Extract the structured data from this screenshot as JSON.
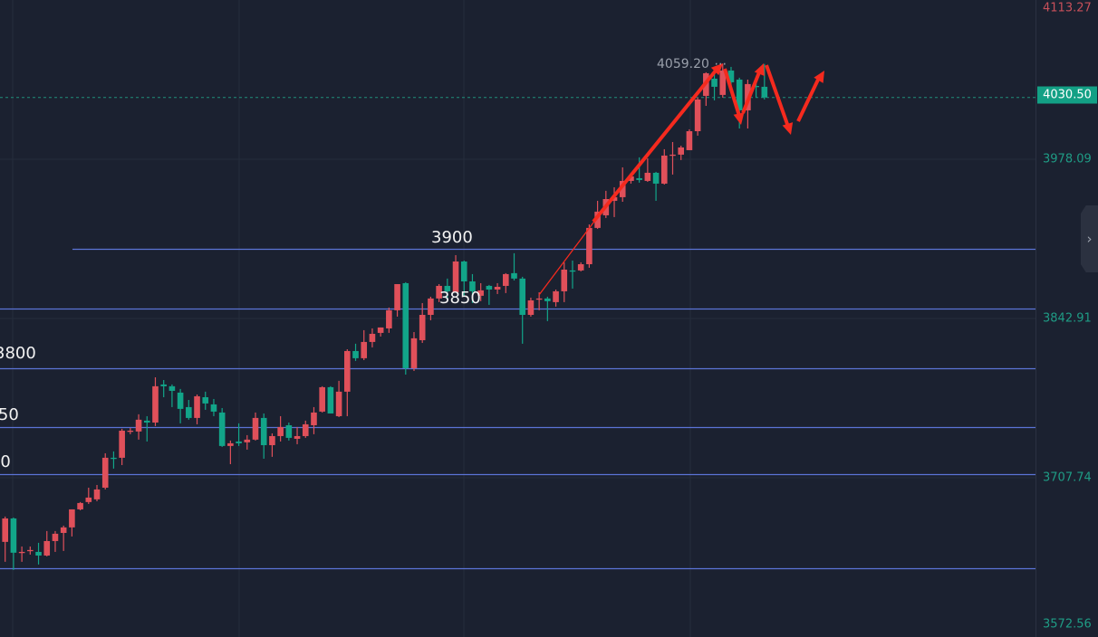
{
  "chart_data": {
    "type": "candlestick",
    "ylim": [
      3572.56,
      4113.27
    ],
    "grid": true,
    "up_color": "#e0505a",
    "down_color": "#12a589",
    "level_line_color": "#5b74d6",
    "axis_ticks": [
      "4113.27",
      "3978.09",
      "3842.91",
      "3707.74",
      "3572.56"
    ],
    "last_price": "4030.50",
    "high_label": "4059.20",
    "levels": [
      {
        "price": 3902,
        "label": "3900"
      },
      {
        "price": 3851,
        "label": "3850"
      },
      {
        "price": 3801,
        "label": "3800"
      },
      {
        "price": 3751,
        "label": "3750"
      },
      {
        "price": 3711,
        "label": "3700"
      },
      {
        "price": 3631,
        "label": ""
      }
    ],
    "candles": [
      [
        3653.3,
        3674.8,
        3636.4,
        3673.2
      ],
      [
        3673.2,
        3674.0,
        3629.5,
        3644.1
      ],
      [
        3644.1,
        3649.4,
        3636.4,
        3644.8
      ],
      [
        3645.6,
        3649.4,
        3642.5,
        3646.4
      ],
      [
        3644.8,
        3652.5,
        3634.1,
        3641.7
      ],
      [
        3641.7,
        3662.5,
        3641.0,
        3654.0
      ],
      [
        3654.0,
        3662.5,
        3644.8,
        3660.2
      ],
      [
        3660.9,
        3667.1,
        3645.6,
        3665.6
      ],
      [
        3665.6,
        3680.9,
        3657.9,
        3680.9
      ],
      [
        3680.9,
        3687.1,
        3680.1,
        3686.3
      ],
      [
        3687.1,
        3699.3,
        3685.5,
        3690.9
      ],
      [
        3689.4,
        3701.6,
        3687.8,
        3697.8
      ],
      [
        3699.3,
        3728.5,
        3697.8,
        3724.7
      ],
      [
        3724.7,
        3730.1,
        3715.5,
        3723.9
      ],
      [
        3724.7,
        3749.3,
        3718.5,
        3747.7
      ],
      [
        3747.0,
        3750.0,
        3744.7,
        3747.7
      ],
      [
        3747.0,
        3761.6,
        3740.1,
        3757.0
      ],
      [
        3756.2,
        3760.0,
        3738.5,
        3754.6
      ],
      [
        3754.6,
        3793.0,
        3751.6,
        3785.4
      ],
      [
        3786.9,
        3790.7,
        3776.1,
        3785.4
      ],
      [
        3785.4,
        3786.9,
        3767.7,
        3781.5
      ],
      [
        3780.0,
        3783.1,
        3753.9,
        3766.2
      ],
      [
        3767.7,
        3773.8,
        3757.0,
        3758.5
      ],
      [
        3758.5,
        3778.4,
        3753.1,
        3776.9
      ],
      [
        3776.1,
        3780.8,
        3765.4,
        3770.8
      ],
      [
        3770.0,
        3774.6,
        3760.0,
        3763.9
      ],
      [
        3763.1,
        3766.9,
        3733.9,
        3734.7
      ],
      [
        3734.7,
        3739.3,
        3719.3,
        3737.0
      ],
      [
        3738.5,
        3753.9,
        3734.7,
        3737.0
      ],
      [
        3737.8,
        3743.9,
        3731.6,
        3740.1
      ],
      [
        3740.1,
        3763.1,
        3739.3,
        3758.5
      ],
      [
        3758.5,
        3762.3,
        3723.9,
        3735.4
      ],
      [
        3735.4,
        3745.4,
        3725.5,
        3743.1
      ],
      [
        3743.1,
        3760.0,
        3738.5,
        3750.8
      ],
      [
        3752.3,
        3754.6,
        3739.3,
        3741.6
      ],
      [
        3740.8,
        3750.8,
        3736.2,
        3743.1
      ],
      [
        3743.1,
        3756.2,
        3741.6,
        3753.1
      ],
      [
        3752.3,
        3767.7,
        3744.7,
        3763.1
      ],
      [
        3763.9,
        3785.4,
        3763.1,
        3784.6
      ],
      [
        3784.6,
        3785.4,
        3762.3,
        3762.3
      ],
      [
        3760.0,
        3790.0,
        3759.2,
        3780.8
      ],
      [
        3780.8,
        3816.8,
        3760.0,
        3815.3
      ],
      [
        3815.3,
        3821.5,
        3806.9,
        3809.2
      ],
      [
        3809.2,
        3833.0,
        3807.6,
        3823.0
      ],
      [
        3823.0,
        3834.5,
        3818.4,
        3829.9
      ],
      [
        3830.7,
        3835.3,
        3827.6,
        3835.3
      ],
      [
        3834.5,
        3852.2,
        3830.7,
        3849.9
      ],
      [
        3849.9,
        3872.1,
        3844.5,
        3872.1
      ],
      [
        3872.9,
        3873.7,
        3795.3,
        3800.7
      ],
      [
        3800.7,
        3831.4,
        3798.4,
        3826.1
      ],
      [
        3824.5,
        3856.0,
        3822.2,
        3846.0
      ],
      [
        3846.0,
        3861.4,
        3841.4,
        3859.9
      ],
      [
        3859.9,
        3872.1,
        3856.8,
        3870.6
      ],
      [
        3870.6,
        3876.8,
        3859.9,
        3866.0
      ],
      [
        3865.2,
        3896.7,
        3865.2,
        3891.3
      ],
      [
        3891.3,
        3892.1,
        3862.2,
        3874.4
      ],
      [
        3874.4,
        3880.6,
        3856.0,
        3866.0
      ],
      [
        3862.2,
        3872.9,
        3857.6,
        3866.8
      ],
      [
        3870.6,
        3871.4,
        3854.5,
        3867.5
      ],
      [
        3867.5,
        3872.9,
        3863.7,
        3869.8
      ],
      [
        3870.6,
        3881.4,
        3864.5,
        3880.6
      ],
      [
        3881.4,
        3898.3,
        3875.2,
        3876.8
      ],
      [
        3876.8,
        3878.3,
        3821.5,
        3846.0
      ],
      [
        3846.0,
        3860.6,
        3844.5,
        3858.3
      ],
      [
        3859.1,
        3865.2,
        3849.9,
        3859.9
      ],
      [
        3859.9,
        3861.4,
        3840.7,
        3857.6
      ],
      [
        3856.8,
        3867.5,
        3853.0,
        3866.0
      ],
      [
        3866.0,
        3890.6,
        3856.8,
        3884.4
      ],
      [
        3883.7,
        3892.1,
        3868.3,
        3882.9
      ],
      [
        3883.7,
        3890.6,
        3882.9,
        3889.0
      ],
      [
        3889.0,
        3922.8,
        3886.0,
        3919.8
      ],
      [
        3919.8,
        3942.8,
        3919.0,
        3933.6
      ],
      [
        3930.5,
        3951.3,
        3928.2,
        3944.3
      ],
      [
        3942.8,
        3954.3,
        3929.0,
        3945.9
      ],
      [
        3945.9,
        3971.2,
        3942.0,
        3959.7
      ],
      [
        3959.7,
        3966.6,
        3957.4,
        3963.5
      ],
      [
        3962.0,
        3979.7,
        3958.2,
        3960.5
      ],
      [
        3959.7,
        3978.9,
        3958.9,
        3966.6
      ],
      [
        3966.6,
        3967.4,
        3942.8,
        3957.4
      ],
      [
        3957.4,
        3986.6,
        3956.6,
        3981.2
      ],
      [
        3981.2,
        3992.7,
        3965.1,
        3982.0
      ],
      [
        3982.0,
        3989.6,
        3977.4,
        3988.1
      ],
      [
        3985.8,
        4003.5,
        3985.8,
        4001.9
      ],
      [
        4001.9,
        4030.4,
        3998.1,
        4028.8
      ],
      [
        4031.9,
        4051.9,
        4023.4,
        4051.1
      ],
      [
        4046.5,
        4051.1,
        4028.1,
        4039.6
      ],
      [
        4032.7,
        4059.2,
        4030.4,
        4053.4
      ],
      [
        4053.4,
        4056.5,
        4040.3,
        4043.4
      ],
      [
        4045.7,
        4047.3,
        4004.2,
        4019.6
      ],
      [
        4019.6,
        4045.7,
        4004.2,
        4041.9
      ],
      [
        4040.3,
        4045.7,
        4030.4,
        4039.6
      ],
      [
        4039.6,
        4059.0,
        4028.8,
        4030.5
      ]
    ],
    "annotation_color": "#f52a1e"
  },
  "icons": {
    "collapse": "chevron-right-icon"
  }
}
